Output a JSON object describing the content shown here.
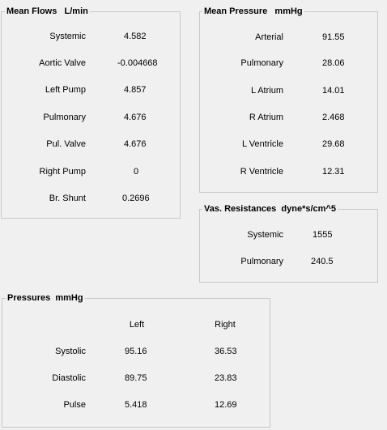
{
  "mean_flows": {
    "title": "Mean Flows   L/min",
    "rows": [
      {
        "label": "Systemic",
        "value": "4.582"
      },
      {
        "label": "Aortic Valve",
        "value": "-0.004668"
      },
      {
        "label": "Left Pump",
        "value": "4.857"
      },
      {
        "label": "Pulmonary",
        "value": "4.676"
      },
      {
        "label": "Pul. Valve",
        "value": "4.676"
      },
      {
        "label": "Right Pump",
        "value": "0"
      },
      {
        "label": "Br. Shunt",
        "value": "0.2696"
      }
    ]
  },
  "mean_pressure": {
    "title": "Mean Pressure   mmHg",
    "rows": [
      {
        "label": "Arterial",
        "value": "91.55"
      },
      {
        "label": "Pulmonary",
        "value": "28.06"
      },
      {
        "label": "L Atrium",
        "value": "14.01"
      },
      {
        "label": "R Atrium",
        "value": "2.468"
      },
      {
        "label": "L Ventricle",
        "value": "29.68"
      },
      {
        "label": "R Ventricle",
        "value": "12.31"
      }
    ]
  },
  "vas_resistances": {
    "title": "Vas. Resistances  dyne*s/cm^5",
    "rows": [
      {
        "label": "Systemic",
        "value": "1555"
      },
      {
        "label": "Pulmonary",
        "value": "240.5"
      }
    ]
  },
  "pressures": {
    "title": "Pressures  mmHg",
    "col_left": "Left",
    "col_right": "Right",
    "rows": [
      {
        "label": "Systolic",
        "left": "95.16",
        "right": "36.53"
      },
      {
        "label": "Diastolic",
        "left": "89.75",
        "right": "23.83"
      },
      {
        "label": "Pulse",
        "left": "5.418",
        "right": "12.69"
      }
    ]
  }
}
